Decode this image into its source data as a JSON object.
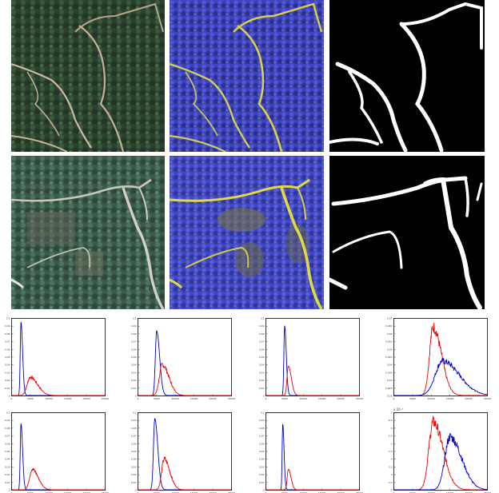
{
  "figure": {
    "rows": [
      {
        "tiles": [
          {
            "kind": "satellite-rgb",
            "icon": "forest-road-image"
          },
          {
            "kind": "false-color",
            "icon": "false-color-image"
          },
          {
            "kind": "road-mask",
            "icon": "binary-mask-image"
          }
        ]
      },
      {
        "tiles": [
          {
            "kind": "satellite-rgb",
            "icon": "forest-road-image"
          },
          {
            "kind": "false-color",
            "icon": "false-color-image"
          },
          {
            "kind": "road-mask",
            "icon": "binary-mask-image"
          }
        ]
      }
    ],
    "colors": {
      "forest": "#2f4a34",
      "false_color": "#3f43c9",
      "road_highlight": "#d9d44a",
      "mask_bg": "#000000",
      "mask_road": "#ffffff"
    }
  },
  "chart_data": [
    {
      "type": "line",
      "row": 1,
      "col": 1,
      "xlim": [
        0,
        25000
      ],
      "ylim": [
        0,
        1
      ],
      "x_ticks": [
        "0",
        "5000",
        "10000",
        "15000",
        "20000",
        "25000"
      ],
      "y_ticks": [
        "0.1",
        "0.09",
        "0.08",
        "0.07",
        "0.06",
        "0.05",
        "0.04",
        "0.03",
        "0.02",
        "0.01",
        "0"
      ],
      "series": [
        {
          "color": "#0000cc",
          "peak_x": 2500,
          "peak_y": 1.0,
          "width": 500
        },
        {
          "color": "#ee0000",
          "peak_x": 5000,
          "peak_y": 0.25,
          "width": 2200
        }
      ]
    },
    {
      "type": "line",
      "row": 1,
      "col": 2,
      "xlim": [
        0,
        25000
      ],
      "ylim": [
        0,
        1
      ],
      "x_ticks": [
        "0",
        "5000",
        "10000",
        "15000",
        "20000",
        "25000"
      ],
      "y_ticks": [
        "0.1",
        "0.09",
        "0.08",
        "0.07",
        "0.06",
        "0.05",
        "0.04",
        "0.03",
        "0.02",
        "0.01",
        "0"
      ],
      "series": [
        {
          "color": "#0000cc",
          "peak_x": 5000,
          "peak_y": 0.88,
          "width": 900
        },
        {
          "color": "#ee0000",
          "peak_x": 6500,
          "peak_y": 0.42,
          "width": 2000
        }
      ]
    },
    {
      "type": "line",
      "row": 1,
      "col": 3,
      "xlim": [
        0,
        25000
      ],
      "ylim": [
        0,
        1
      ],
      "x_ticks": [
        "0",
        "5000",
        "10000",
        "15000",
        "20000",
        "25000"
      ],
      "y_ticks": [
        "0.1",
        "0.09",
        "0.08",
        "0.07",
        "0.06",
        "0.05",
        "0.04",
        "0.03",
        "0.02",
        "0.01",
        "0"
      ],
      "series": [
        {
          "color": "#0000cc",
          "peak_x": 5000,
          "peak_y": 0.95,
          "width": 500
        },
        {
          "color": "#ee0000",
          "peak_x": 6000,
          "peak_y": 0.4,
          "width": 900
        }
      ]
    },
    {
      "type": "line",
      "row": 1,
      "col": 4,
      "xlim": [
        0,
        25000
      ],
      "ylim": [
        0,
        1
      ],
      "x_ticks": [
        "0",
        "5000",
        "10000",
        "15000",
        "20000",
        "25000"
      ],
      "y_ticks": [
        "0.07",
        "0.065",
        "0.06",
        "0.055",
        "0.05",
        "0.045",
        "0.04",
        "0.035",
        "0.03",
        "0.025",
        "0.02"
      ],
      "series": [
        {
          "color": "#ee0000",
          "peak_x": 10500,
          "peak_y": 0.93,
          "width": 2500
        },
        {
          "color": "#0000cc",
          "peak_x": 13000,
          "peak_y": 0.47,
          "width": 5000
        }
      ]
    },
    {
      "type": "line",
      "row": 2,
      "col": 1,
      "xlim": [
        0,
        25000
      ],
      "ylim": [
        0,
        1
      ],
      "x_ticks": [
        "0",
        "5000",
        "10000",
        "15000",
        "20000",
        "25000"
      ],
      "y_ticks": [
        "0.1",
        "0.09",
        "0.08",
        "0.07",
        "0.06",
        "0.05",
        "0.04",
        "0.03",
        "0.02",
        "0.01",
        "0"
      ],
      "series": [
        {
          "color": "#0000cc",
          "peak_x": 2500,
          "peak_y": 0.9,
          "width": 500
        },
        {
          "color": "#ee0000",
          "peak_x": 5500,
          "peak_y": 0.28,
          "width": 1800
        }
      ]
    },
    {
      "type": "line",
      "row": 2,
      "col": 2,
      "xlim": [
        0,
        25000
      ],
      "ylim": [
        0,
        1
      ],
      "x_ticks": [
        "0",
        "5000",
        "10000",
        "15000",
        "20000",
        "25000"
      ],
      "y_ticks": [
        "0.1",
        "0.09",
        "0.08",
        "0.07",
        "0.06",
        "0.05",
        "0.04",
        "0.03",
        "0.02",
        "0.01",
        "0"
      ],
      "series": [
        {
          "color": "#0000cc",
          "peak_x": 4500,
          "peak_y": 0.97,
          "width": 900
        },
        {
          "color": "#ee0000",
          "peak_x": 7000,
          "peak_y": 0.42,
          "width": 1700
        }
      ]
    },
    {
      "type": "line",
      "row": 2,
      "col": 3,
      "xlim": [
        0,
        25000
      ],
      "ylim": [
        0,
        1
      ],
      "x_ticks": [
        "0",
        "5000",
        "10000",
        "15000",
        "20000",
        "25000"
      ],
      "y_ticks": [
        "0.1",
        "0.09",
        "0.08",
        "0.07",
        "0.06",
        "0.05",
        "0.04",
        "0.03",
        "0.02",
        "0.01",
        "0"
      ],
      "series": [
        {
          "color": "#0000cc",
          "peak_x": 4500,
          "peak_y": 0.9,
          "width": 400
        },
        {
          "color": "#ee0000",
          "peak_x": 6000,
          "peak_y": 0.28,
          "width": 800
        }
      ]
    },
    {
      "type": "line",
      "row": 2,
      "col": 4,
      "xlim": [
        0,
        25000
      ],
      "ylim": [
        0,
        1
      ],
      "y_exponent": "x 10⁻³",
      "x_ticks": [
        "0",
        "5000",
        "10000",
        "15000",
        "20000",
        "25000"
      ],
      "y_ticks": [
        "7",
        "6.5",
        "6",
        "5.5",
        "5",
        "4.5",
        "4",
        "3.5",
        "3",
        "2.5",
        "2"
      ],
      "series": [
        {
          "color": "#ee0000",
          "peak_x": 10500,
          "peak_y": 0.92,
          "width": 3000
        },
        {
          "color": "#0000cc",
          "peak_x": 15000,
          "peak_y": 0.72,
          "width": 3500
        }
      ]
    }
  ]
}
